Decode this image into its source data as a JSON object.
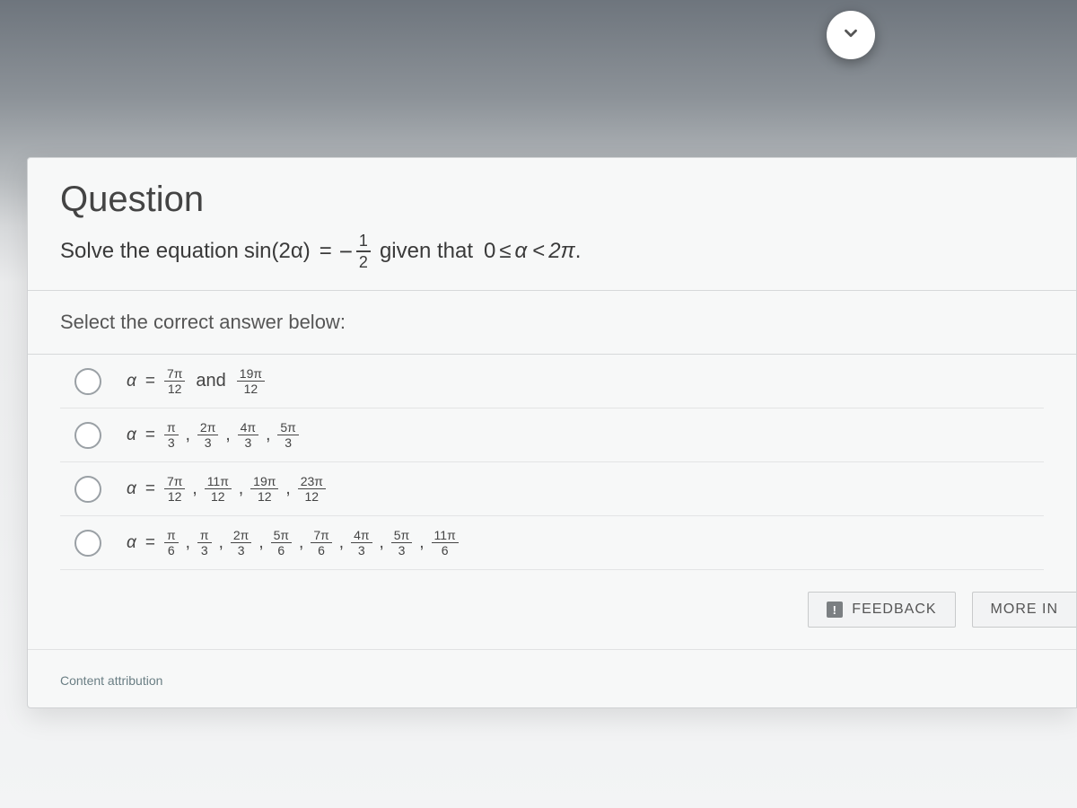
{
  "fab": {
    "icon": "chevron-down"
  },
  "question": {
    "heading": "Question",
    "prompt_lead": "Solve the equation",
    "equation_left": "sin(2α)",
    "equals": "=",
    "minus": "−",
    "rhs_num": "1",
    "rhs_den": "2",
    "given_text": "given that",
    "zero": "0",
    "leq": "≤",
    "alpha": "α",
    "lt": "<",
    "two_pi": "2π",
    "period": "."
  },
  "select_label": "Select the correct answer below:",
  "options": [
    {
      "alpha": "α",
      "eq": "=",
      "parts": [
        {
          "type": "frac",
          "num": "7π",
          "den": "12"
        },
        {
          "type": "word",
          "text": "and"
        },
        {
          "type": "frac",
          "num": "19π",
          "den": "12"
        }
      ]
    },
    {
      "alpha": "α",
      "eq": "=",
      "parts": [
        {
          "type": "frac",
          "num": "π",
          "den": "3"
        },
        {
          "type": "sep",
          "text": ","
        },
        {
          "type": "frac",
          "num": "2π",
          "den": "3"
        },
        {
          "type": "sep",
          "text": ","
        },
        {
          "type": "frac",
          "num": "4π",
          "den": "3"
        },
        {
          "type": "sep",
          "text": ","
        },
        {
          "type": "frac",
          "num": "5π",
          "den": "3"
        }
      ]
    },
    {
      "alpha": "α",
      "eq": "=",
      "parts": [
        {
          "type": "frac",
          "num": "7π",
          "den": "12"
        },
        {
          "type": "sep",
          "text": ","
        },
        {
          "type": "frac",
          "num": "11π",
          "den": "12"
        },
        {
          "type": "sep",
          "text": ","
        },
        {
          "type": "frac",
          "num": "19π",
          "den": "12"
        },
        {
          "type": "sep",
          "text": ","
        },
        {
          "type": "frac",
          "num": "23π",
          "den": "12"
        }
      ]
    },
    {
      "alpha": "α",
      "eq": "=",
      "parts": [
        {
          "type": "frac",
          "num": "π",
          "den": "6"
        },
        {
          "type": "sep",
          "text": ","
        },
        {
          "type": "frac",
          "num": "π",
          "den": "3"
        },
        {
          "type": "sep",
          "text": ","
        },
        {
          "type": "frac",
          "num": "2π",
          "den": "3"
        },
        {
          "type": "sep",
          "text": ","
        },
        {
          "type": "frac",
          "num": "5π",
          "den": "6"
        },
        {
          "type": "sep",
          "text": ","
        },
        {
          "type": "frac",
          "num": "7π",
          "den": "6"
        },
        {
          "type": "sep",
          "text": ","
        },
        {
          "type": "frac",
          "num": "4π",
          "den": "3"
        },
        {
          "type": "sep",
          "text": ","
        },
        {
          "type": "frac",
          "num": "5π",
          "den": "3"
        },
        {
          "type": "sep",
          "text": ","
        },
        {
          "type": "frac",
          "num": "11π",
          "den": "6"
        }
      ]
    }
  ],
  "buttons": {
    "feedback": "FEEDBACK",
    "feedback_badge": "!",
    "more_info": "MORE IN"
  },
  "attribution": "Content attribution",
  "colors": {
    "card_bg": "#f7f8f8",
    "border": "#d7d9da",
    "text": "#444444",
    "muted": "#6a7e84"
  }
}
